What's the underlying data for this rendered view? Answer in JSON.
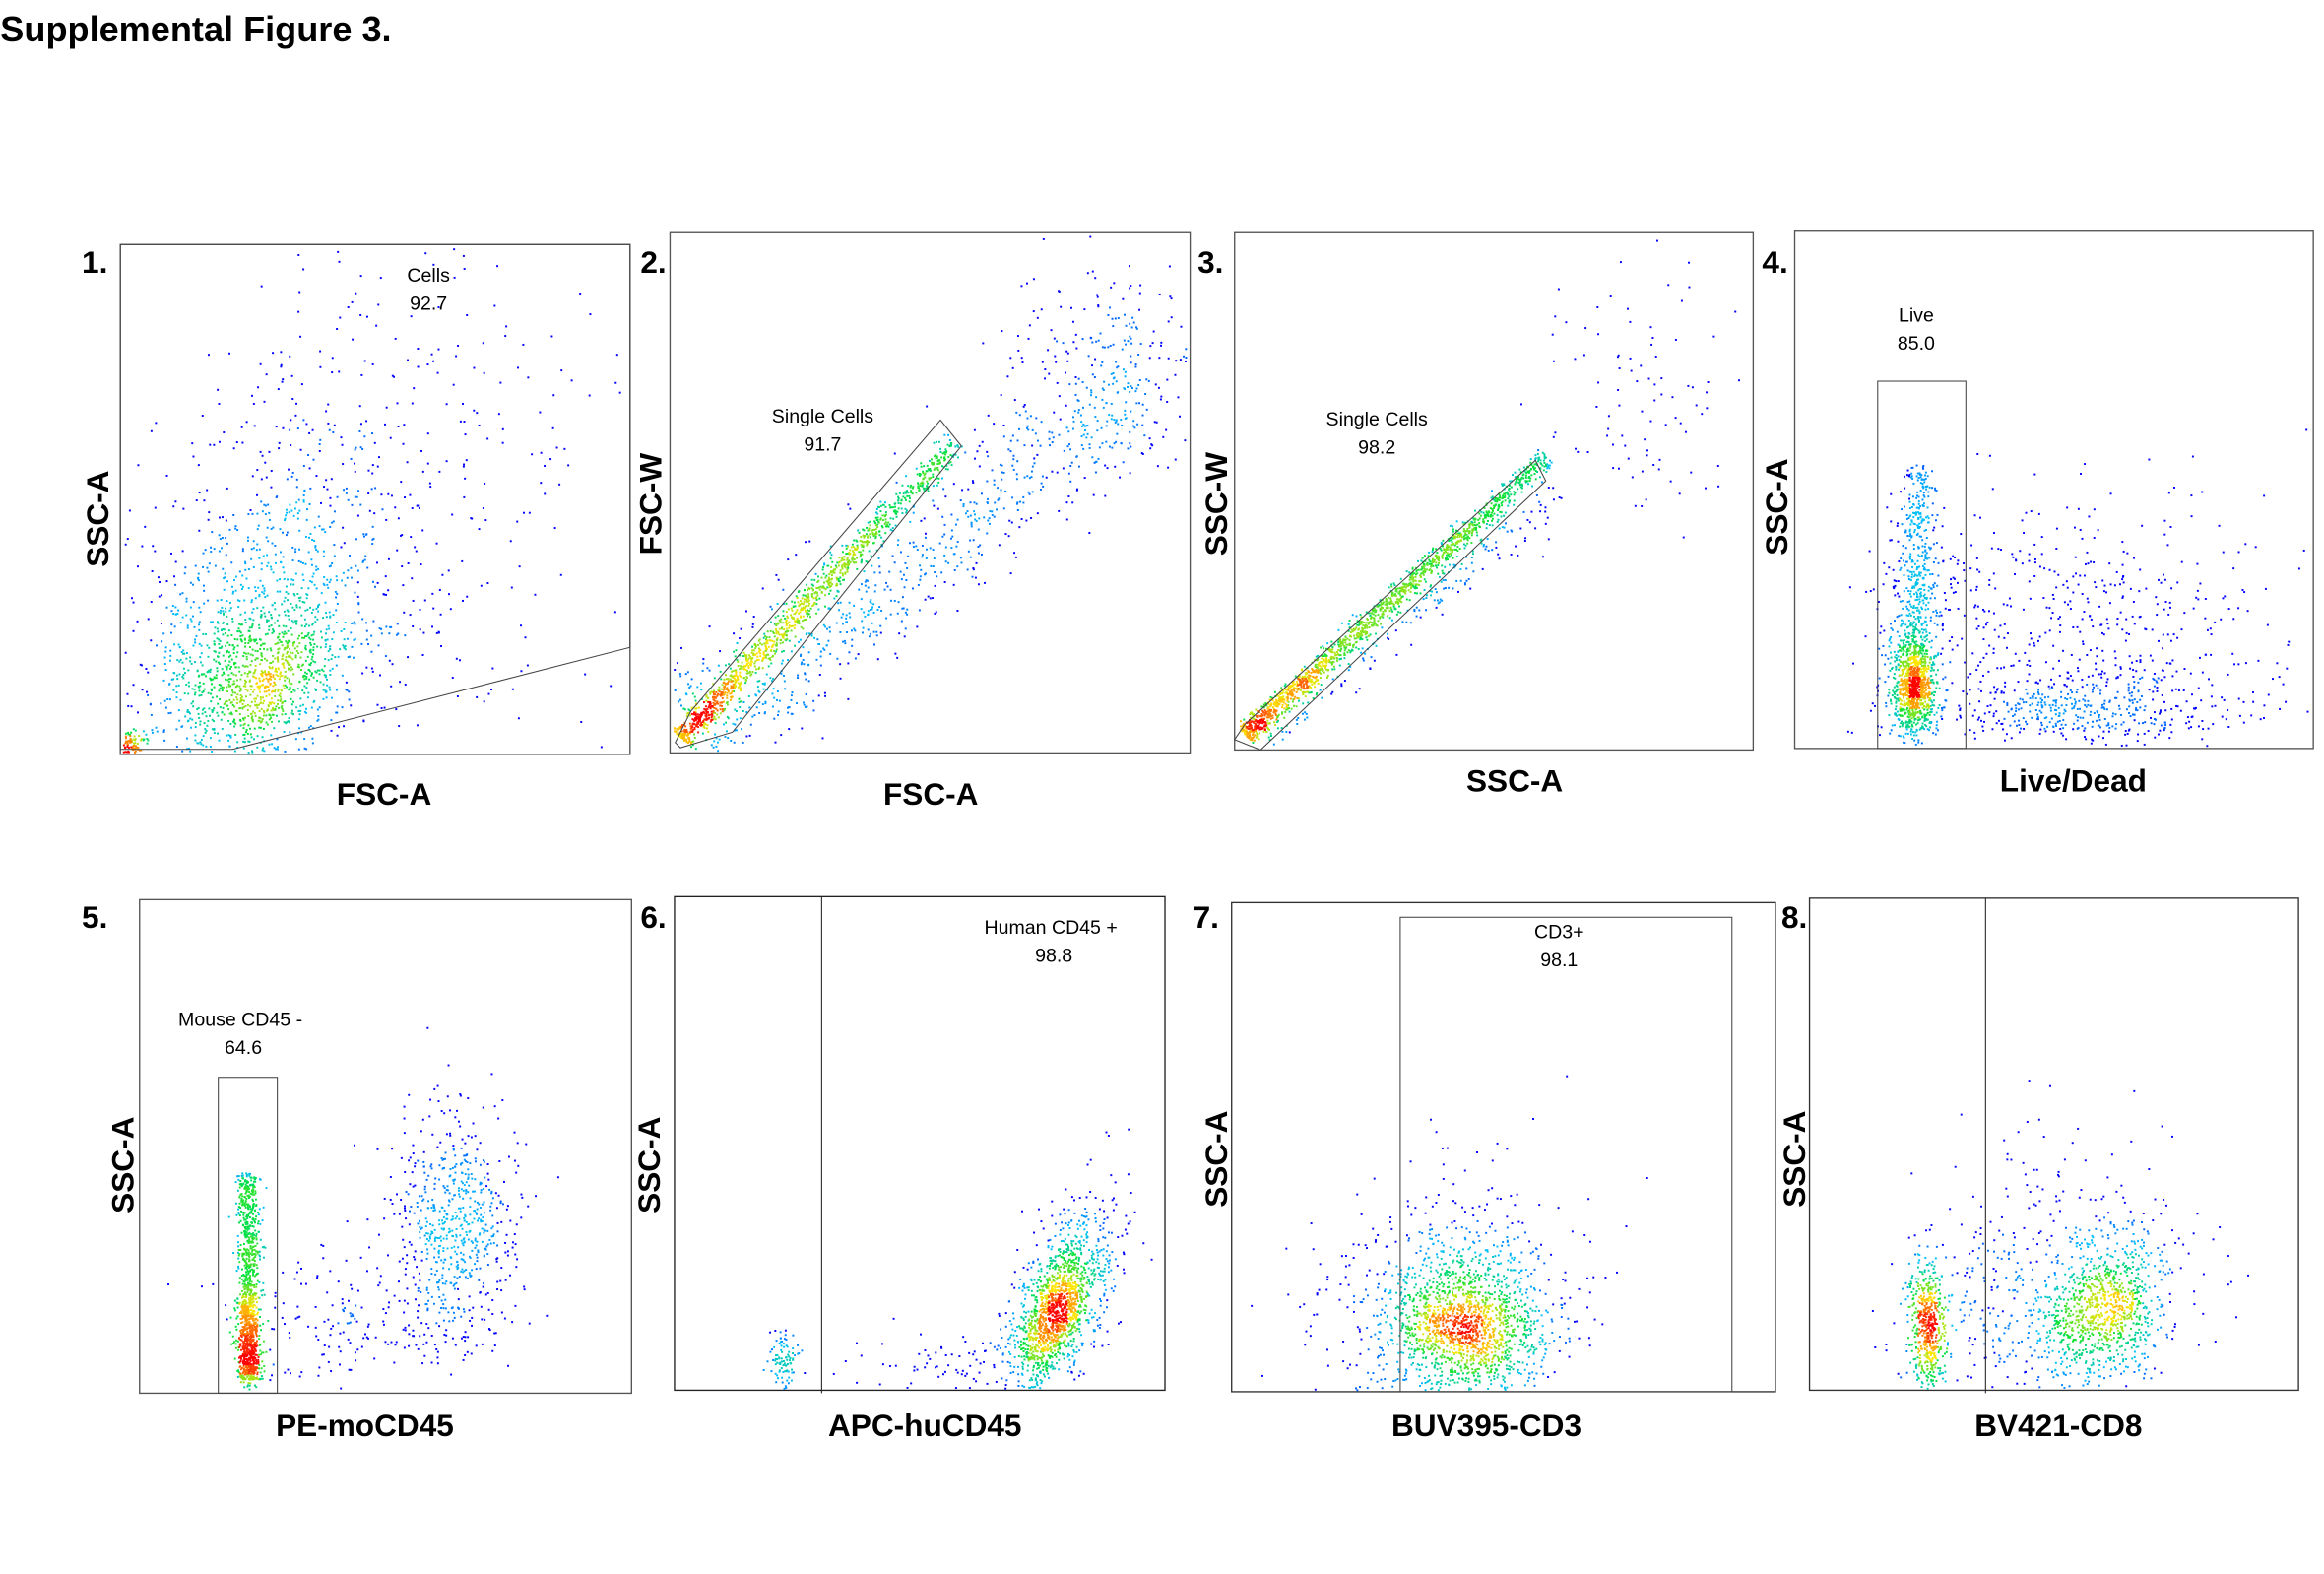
{
  "title": "Supplemental Figure 3.",
  "chart_data": [
    {
      "type": "scatter",
      "panel": "1.",
      "xlabel": "FSC-A",
      "ylabel": "SSC-A",
      "gate": {
        "name": "Cells",
        "percent": "92.7"
      },
      "color_scale": "density (blue-low to red-high)"
    },
    {
      "type": "scatter",
      "panel": "2.",
      "xlabel": "FSC-A",
      "ylabel": "FSC-W",
      "gate": {
        "name": "Single Cells",
        "percent": "91.7"
      },
      "color_scale": "density (blue-low to red-high)"
    },
    {
      "type": "scatter",
      "panel": "3.",
      "xlabel": "SSC-A",
      "ylabel": "SSC-W",
      "gate": {
        "name": "Single Cells",
        "percent": "98.2"
      },
      "color_scale": "density (blue-low to red-high)"
    },
    {
      "type": "scatter",
      "panel": "4.",
      "xlabel": "Live/Dead",
      "ylabel": "SSC-A",
      "gate": {
        "name": "Live",
        "percent": "85.0"
      },
      "color_scale": "density (blue-low to red-high)"
    },
    {
      "type": "scatter",
      "panel": "5.",
      "xlabel": "PE-moCD45",
      "ylabel": "SSC-A",
      "gate": {
        "name": "Mouse CD45 -",
        "percent": "64.6"
      },
      "color_scale": "density (blue-low to red-high)"
    },
    {
      "type": "scatter",
      "panel": "6.",
      "xlabel": "APC-huCD45",
      "ylabel": "SSC-A",
      "gate": {
        "name": "Human CD45 +",
        "percent": "98.8"
      },
      "color_scale": "density (blue-low to red-high)"
    },
    {
      "type": "scatter",
      "panel": "7.",
      "xlabel": "BUV395-CD3",
      "ylabel": "SSC-A",
      "gate": {
        "name": "CD3+",
        "percent": "98.1"
      },
      "color_scale": "density (blue-low to red-high)"
    },
    {
      "type": "scatter",
      "panel": "8.",
      "xlabel": "BV421-CD8",
      "ylabel": "SSC-A",
      "color_scale": "density (blue-low to red-high)"
    }
  ]
}
